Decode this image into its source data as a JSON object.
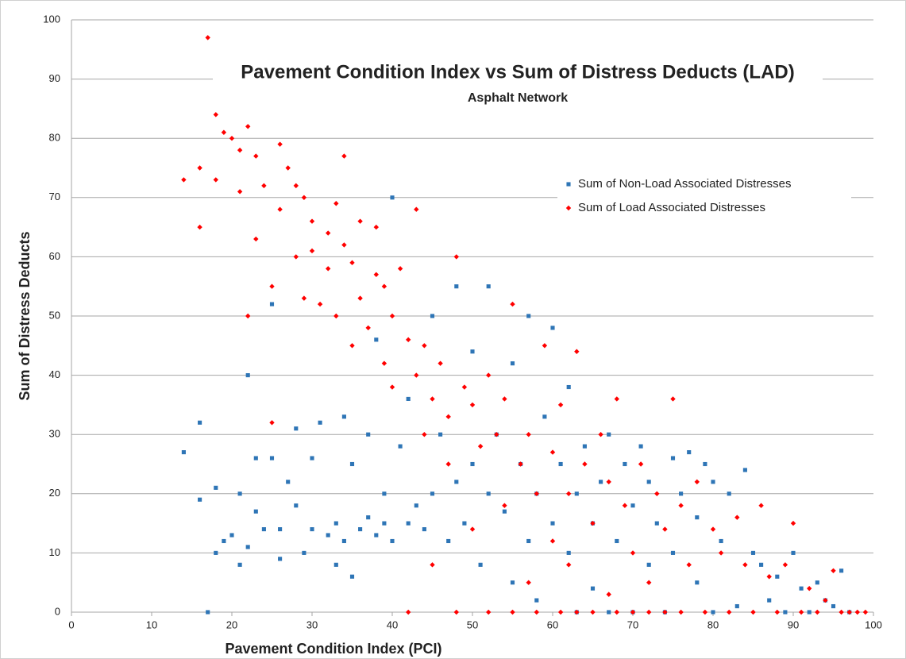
{
  "chart_data": {
    "type": "scatter",
    "title": "Pavement Condition Index vs Sum of Distress Deducts (LAD)",
    "subtitle": "Asphalt Network",
    "x_label": "Pavement Condition Index (PCI)",
    "y_label": "Sum of Distress Deducts",
    "xlim": [
      0,
      100
    ],
    "ylim": [
      0,
      100
    ],
    "xticks": [
      0,
      10,
      20,
      30,
      40,
      50,
      60,
      70,
      80,
      90,
      100
    ],
    "yticks": [
      0,
      10,
      20,
      30,
      40,
      50,
      60,
      70,
      80,
      90,
      100
    ],
    "grid": true,
    "legend": "upper right",
    "series": [
      {
        "name": "Sum of Non-Load Associated Distresses",
        "color": "#2e75b6",
        "marker": "square",
        "x": [
          14,
          16,
          16,
          17,
          18,
          18,
          19,
          20,
          21,
          21,
          22,
          22,
          23,
          23,
          24,
          25,
          25,
          26,
          26,
          27,
          28,
          28,
          29,
          30,
          30,
          31,
          32,
          33,
          33,
          34,
          34,
          35,
          35,
          36,
          37,
          37,
          38,
          38,
          39,
          39,
          40,
          40,
          41,
          42,
          42,
          43,
          44,
          45,
          45,
          46,
          47,
          48,
          48,
          49,
          50,
          50,
          51,
          52,
          52,
          53,
          54,
          55,
          55,
          56,
          57,
          57,
          58,
          58,
          59,
          60,
          60,
          61,
          62,
          62,
          63,
          63,
          64,
          65,
          65,
          66,
          67,
          67,
          68,
          69,
          70,
          70,
          71,
          72,
          72,
          73,
          74,
          75,
          75,
          76,
          77,
          78,
          78,
          79,
          80,
          80,
          81,
          82,
          83,
          84,
          85,
          86,
          87,
          88,
          89,
          90,
          91,
          92,
          93,
          94,
          95,
          96,
          97
        ],
        "values": [
          27,
          32,
          19,
          0,
          21,
          10,
          12,
          13,
          8,
          20,
          11,
          40,
          17,
          26,
          14,
          52,
          26,
          9,
          14,
          22,
          18,
          31,
          10,
          14,
          26,
          32,
          13,
          15,
          8,
          33,
          12,
          6,
          25,
          14,
          30,
          16,
          13,
          46,
          15,
          20,
          70,
          12,
          28,
          15,
          36,
          18,
          14,
          20,
          50,
          30,
          12,
          22,
          55,
          15,
          25,
          44,
          8,
          20,
          55,
          30,
          17,
          42,
          5,
          25,
          12,
          50,
          20,
          2,
          33,
          15,
          48,
          25,
          10,
          38,
          20,
          0,
          28,
          15,
          4,
          22,
          30,
          0,
          12,
          25,
          18,
          0,
          28,
          8,
          22,
          15,
          0,
          26,
          10,
          20,
          27,
          5,
          16,
          25,
          0,
          22,
          12,
          20,
          1,
          24,
          10,
          8,
          2,
          6,
          0,
          10,
          4,
          0,
          5,
          2,
          1,
          7,
          0
        ]
      },
      {
        "name": "Sum of Load Associated Distresses",
        "color": "#ff0000",
        "marker": "diamond",
        "x": [
          14,
          16,
          16,
          17,
          18,
          18,
          19,
          20,
          21,
          21,
          22,
          22,
          23,
          23,
          24,
          25,
          25,
          26,
          26,
          27,
          28,
          28,
          29,
          29,
          30,
          30,
          31,
          32,
          32,
          33,
          33,
          34,
          34,
          35,
          35,
          36,
          36,
          37,
          38,
          38,
          39,
          39,
          40,
          40,
          41,
          42,
          42,
          43,
          43,
          44,
          44,
          45,
          45,
          46,
          47,
          47,
          48,
          48,
          49,
          50,
          50,
          51,
          52,
          52,
          53,
          54,
          54,
          55,
          55,
          56,
          57,
          57,
          58,
          58,
          59,
          60,
          60,
          61,
          61,
          62,
          62,
          63,
          63,
          64,
          65,
          65,
          66,
          67,
          67,
          68,
          68,
          69,
          70,
          70,
          71,
          72,
          72,
          73,
          74,
          74,
          75,
          76,
          76,
          77,
          78,
          79,
          80,
          81,
          82,
          83,
          84,
          85,
          86,
          87,
          88,
          89,
          90,
          91,
          92,
          93,
          94,
          95,
          96,
          97,
          98,
          99
        ],
        "values": [
          73,
          65,
          75,
          97,
          84,
          73,
          81,
          80,
          71,
          78,
          82,
          50,
          77,
          63,
          72,
          55,
          32,
          79,
          68,
          75,
          60,
          72,
          70,
          53,
          66,
          61,
          52,
          64,
          58,
          69,
          50,
          77,
          62,
          59,
          45,
          66,
          53,
          48,
          57,
          65,
          42,
          55,
          50,
          38,
          58,
          46,
          0,
          68,
          40,
          45,
          30,
          36,
          8,
          42,
          33,
          25,
          60,
          0,
          38,
          35,
          14,
          28,
          40,
          0,
          30,
          36,
          18,
          52,
          0,
          25,
          30,
          5,
          20,
          0,
          45,
          27,
          12,
          0,
          35,
          20,
          8,
          44,
          0,
          25,
          15,
          0,
          30,
          22,
          3,
          36,
          0,
          18,
          10,
          0,
          25,
          5,
          0,
          20,
          14,
          0,
          36,
          18,
          0,
          8,
          22,
          0,
          14,
          10,
          0,
          16,
          8,
          0,
          18,
          6,
          0,
          8,
          15,
          0,
          4,
          0,
          2,
          7,
          0,
          0,
          0,
          0
        ]
      }
    ]
  }
}
